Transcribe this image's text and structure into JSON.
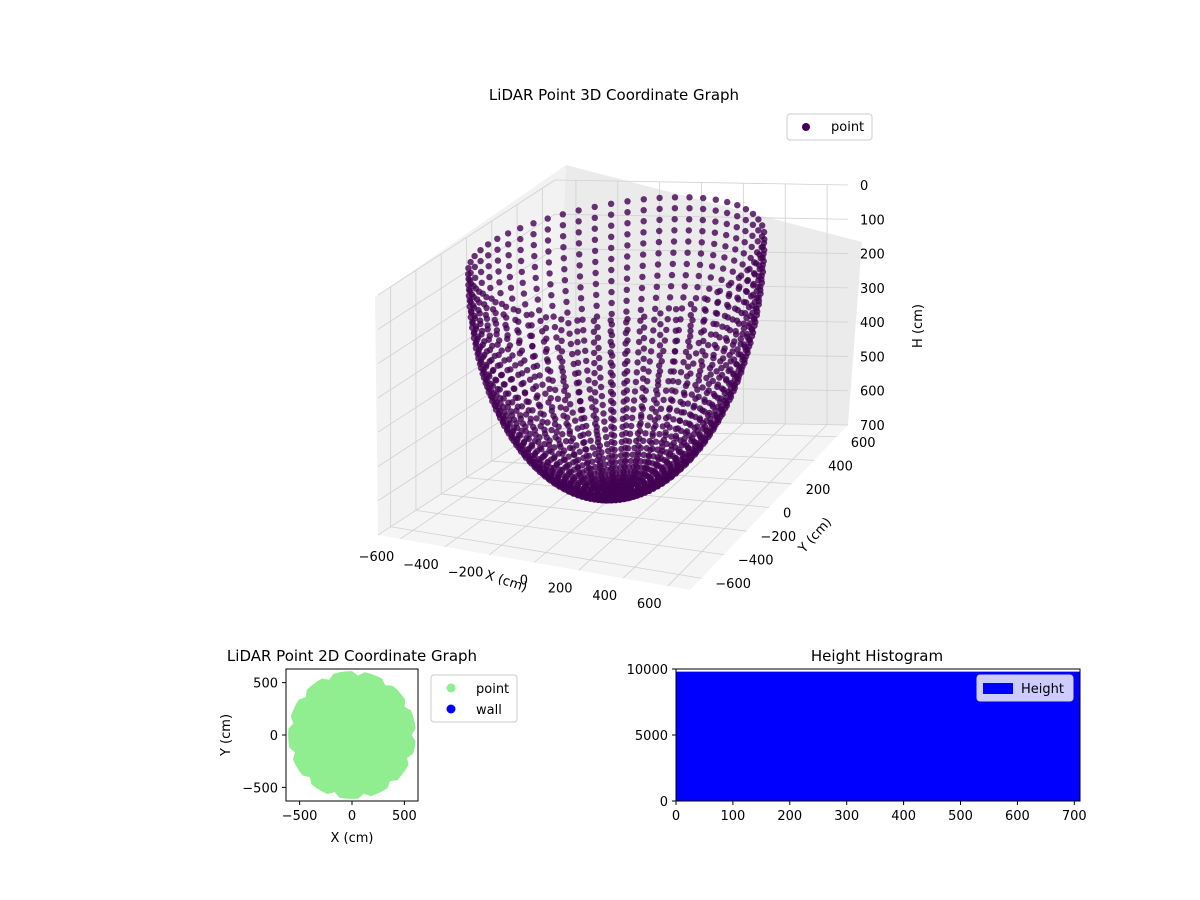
{
  "colors": {
    "point3d": "#440154",
    "point2d": "#90ee90",
    "wall": "#0000ff",
    "histogram": "#0000ff",
    "pane_back": "#f2f2f2",
    "pane_side": "#ebebeb"
  },
  "chart_data": [
    {
      "type": "scatter",
      "title": "LiDAR Point 3D Coordinate Graph",
      "xlabel": "X (cm)",
      "ylabel": "Y (cm)",
      "zlabel": "H (cm)",
      "xlim": [
        -700,
        700
      ],
      "ylim": [
        -700,
        700
      ],
      "zlim": [
        0,
        700
      ],
      "z_axis_inverted": true,
      "x_ticks": [
        "−600",
        "−400",
        "−200",
        "0",
        "200",
        "400",
        "600"
      ],
      "y_ticks": [
        "−600",
        "−400",
        "−200",
        "0",
        "200",
        "400",
        "600"
      ],
      "z_ticks": [
        "0",
        "100",
        "200",
        "300",
        "400",
        "500",
        "600",
        "700"
      ],
      "legend": [
        "point"
      ],
      "legend_position": "top-right",
      "grid": true,
      "series": [
        {
          "name": "point",
          "shape": "hemispherical scan arcs centered near origin, radius about 600 cm, height 0 to 700 cm"
        }
      ]
    },
    {
      "type": "scatter",
      "title": "LiDAR Point 2D Coordinate Graph",
      "xlabel": "X (cm)",
      "ylabel": "Y (cm)",
      "xlim": [
        -630,
        630
      ],
      "ylim": [
        -630,
        630
      ],
      "x_ticks": [
        "−500",
        "0",
        "500"
      ],
      "y_ticks": [
        "−500",
        "0",
        "500"
      ],
      "legend": [
        "point",
        "wall"
      ],
      "legend_position": "outside-right",
      "series": [
        {
          "name": "point",
          "fill": "dense filled disc, radius about 600 cm"
        },
        {
          "name": "wall",
          "points": []
        }
      ]
    },
    {
      "type": "bar",
      "title": "Height Histogram",
      "xlim": [
        0,
        710
      ],
      "ylim": [
        0,
        10000
      ],
      "x_ticks": [
        "0",
        "100",
        "200",
        "300",
        "400",
        "500",
        "600",
        "700"
      ],
      "y_ticks": [
        "0",
        "5000",
        "10000"
      ],
      "legend": [
        "Height"
      ],
      "legend_position": "top-right",
      "series": [
        {
          "name": "Height",
          "bin_range": [
            0,
            710
          ],
          "count_per_bin": 9800
        }
      ]
    }
  ]
}
